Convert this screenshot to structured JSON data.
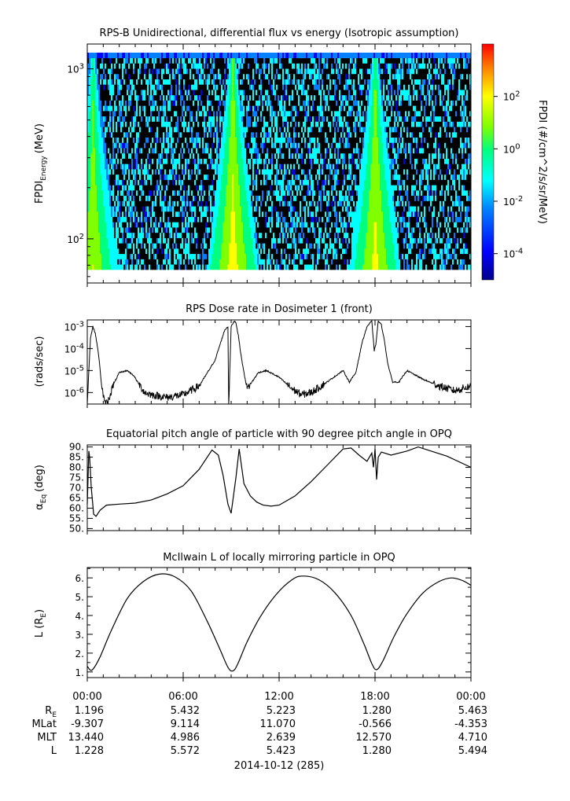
{
  "figure": {
    "date_label": "2014-10-12 (285)"
  },
  "chart_data": [
    {
      "id": "spectrogram",
      "type": "heatmap",
      "title": "RPS-B  Unidirectional, differential flux vs energy (Isotropic assumption)",
      "ylabel": "FPDI",
      "ylabel_sub": "Energy",
      "ylabel_unit": "(MeV)",
      "y_scale": "log",
      "ylim": [
        55,
        1400
      ],
      "y_ticks": [
        {
          "value": 100,
          "label": "10",
          "exp": "2"
        },
        {
          "value": 1000,
          "label": "10",
          "exp": "3"
        }
      ],
      "x_hours": [
        0,
        24
      ],
      "energy_channels_mev": [
        58,
        62,
        66,
        71,
        76,
        82,
        88,
        95,
        102,
        110,
        118,
        127,
        137,
        148,
        160,
        173,
        187,
        202,
        219,
        237,
        257,
        279,
        303,
        329,
        357,
        388,
        421,
        457,
        496,
        538,
        584,
        634,
        688,
        747,
        811,
        880,
        955,
        1037,
        1125,
        1222,
        1326
      ],
      "flux_peaks": [
        {
          "center_hour": 0.35,
          "peak_log_flux": 1.2,
          "lowest_energy_mev": 58
        },
        {
          "center_hour": 9.1,
          "peak_log_flux": 1.8,
          "lowest_energy_mev": 58
        },
        {
          "center_hour": 18.0,
          "peak_log_flux": 1.6,
          "lowest_energy_mev": 58
        }
      ],
      "colorbar": {
        "label": "FPDI (#/cm^2/s/sr/MeV)",
        "log_range": [
          -5,
          4
        ],
        "ticks": [
          {
            "label": "10",
            "exp": "-4",
            "log": -4
          },
          {
            "label": "10",
            "exp": "-2",
            "log": -2
          },
          {
            "label": "10",
            "exp": "0",
            "log": 0
          },
          {
            "label": "10",
            "exp": "2",
            "log": 2
          }
        ],
        "colors": [
          "#00008b",
          "#0000ff",
          "#0080ff",
          "#00ffff",
          "#00ff80",
          "#80ff00",
          "#ffff00",
          "#ff8000",
          "#ff0000"
        ]
      }
    },
    {
      "id": "dose",
      "type": "line",
      "title": "RPS  Dose rate in Dosimeter 1 (front)",
      "ylabel": "(rads/sec)",
      "y_scale": "log",
      "ylim": [
        3e-07,
        0.002
      ],
      "y_ticks": [
        {
          "value": 1e-06,
          "label": "10",
          "exp": "-6"
        },
        {
          "value": 1e-05,
          "label": "10",
          "exp": "-5"
        },
        {
          "value": 0.0001,
          "label": "10",
          "exp": "-4"
        },
        {
          "value": 0.001,
          "label": "10",
          "exp": "-3"
        }
      ],
      "x": [
        0.0,
        0.1,
        0.2,
        0.35,
        0.5,
        0.7,
        0.9,
        1.1,
        1.3,
        1.6,
        2.0,
        2.5,
        2.9,
        3.3,
        3.6,
        4.0,
        5.0,
        6.0,
        7.0,
        7.6,
        8.0,
        8.3,
        8.6,
        8.8,
        8.85,
        9.0,
        9.2,
        9.3,
        9.45,
        9.6,
        9.8,
        10.0,
        10.3,
        10.7,
        11.2,
        12.0,
        12.8,
        13.4,
        14.0,
        15.0,
        16.0,
        16.4,
        16.8,
        17.2,
        17.5,
        17.8,
        17.95,
        18.05,
        18.2,
        18.4,
        18.6,
        18.8,
        19.1,
        19.5,
        20.0,
        21.0,
        22.0,
        23.0,
        24.0
      ],
      "y": [
        4e-07,
        1e-05,
        0.0003,
        0.001,
        0.0005,
        6e-05,
        2e-06,
        3e-07,
        4e-07,
        2e-06,
        8e-06,
        1e-05,
        6e-06,
        2e-06,
        1e-06,
        8e-07,
        6e-07,
        8e-07,
        2e-06,
        1e-05,
        3e-05,
        0.00015,
        0.0007,
        0.001,
        3e-07,
        0.001,
        0.0018,
        0.0015,
        0.0004,
        6e-05,
        8e-06,
        1.5e-06,
        3e-06,
        8e-06,
        1e-05,
        5e-06,
        1.5e-06,
        8e-07,
        1e-06,
        3e-06,
        1e-05,
        3e-06,
        8e-06,
        0.0002,
        0.001,
        0.0018,
        8e-05,
        0.00015,
        0.0018,
        0.0012,
        0.0002,
        2e-05,
        3e-06,
        3e-06,
        1e-05,
        4e-06,
        2e-06,
        1.2e-06,
        2e-06
      ]
    },
    {
      "id": "pitch",
      "type": "line",
      "title": "Equatorial pitch angle of particle with 90 degree pitch angle in OPQ",
      "ylabel": "α",
      "ylabel_sub": "Eq",
      "ylabel_unit": "(deg)",
      "ylim": [
        49,
        91
      ],
      "y_ticks": [
        50,
        55,
        60,
        65,
        70,
        75,
        80,
        85,
        90
      ],
      "x": [
        0.0,
        0.1,
        0.15,
        0.25,
        0.4,
        0.55,
        0.8,
        1.2,
        2.0,
        3.0,
        4.0,
        5.0,
        6.0,
        7.0,
        7.8,
        8.2,
        8.5,
        8.8,
        9.0,
        9.3,
        9.5,
        9.8,
        10.2,
        10.6,
        11.0,
        11.5,
        12.0,
        13.0,
        14.0,
        15.0,
        16.0,
        16.5,
        17.0,
        17.5,
        17.8,
        17.9,
        18.0,
        18.1,
        18.2,
        18.4,
        19.0,
        20.0,
        20.7,
        21.5,
        22.5,
        24.0
      ],
      "y": [
        62,
        88,
        85,
        70,
        57,
        56,
        59,
        61.5,
        62,
        62.5,
        64,
        67,
        71,
        79,
        88.5,
        86,
        76,
        62,
        57.5,
        75,
        89,
        72,
        66,
        63,
        61.5,
        61,
        61.5,
        66,
        73,
        81,
        89,
        89.5,
        86,
        83,
        87,
        80,
        89,
        74,
        85,
        87.5,
        86,
        88,
        90,
        88,
        85.5,
        80
      ]
    },
    {
      "id": "lshell",
      "type": "line",
      "title": "McIlwain L of locally mirroring particle in OPQ",
      "ylabel": "L (R",
      "ylabel_sub": "E",
      "ylabel_unit": ")",
      "ylim": [
        0.7,
        6.55
      ],
      "y_ticks": [
        1,
        2,
        3,
        4,
        5,
        6
      ],
      "x": [
        0.0,
        0.3,
        0.8,
        1.5,
        2.5,
        3.5,
        4.5,
        5.5,
        6.5,
        7.5,
        8.3,
        8.8,
        9.1,
        9.4,
        10.0,
        10.8,
        11.8,
        12.8,
        13.5,
        14.5,
        15.5,
        16.5,
        17.3,
        17.8,
        18.1,
        18.5,
        19.2,
        20.0,
        21.0,
        22.0,
        22.8,
        23.5,
        24.0
      ],
      "y": [
        1.3,
        1.1,
        1.8,
        3.2,
        4.9,
        5.8,
        6.2,
        6.05,
        5.3,
        3.7,
        2.2,
        1.25,
        1.05,
        1.4,
        2.6,
        3.9,
        5.1,
        5.9,
        6.1,
        5.9,
        5.2,
        4.0,
        2.5,
        1.45,
        1.12,
        1.6,
        2.9,
        4.1,
        5.2,
        5.8,
        6.0,
        5.85,
        5.6
      ]
    }
  ],
  "x_axis": {
    "tick_labels": [
      "00:00",
      "06:00",
      "12:00",
      "18:00",
      "00:00"
    ],
    "tick_hours": [
      0,
      6,
      12,
      18,
      24
    ]
  },
  "ephemeris": {
    "rows": [
      {
        "label": "R",
        "label_sub": "E",
        "values": [
          "1.196",
          "5.432",
          "5.223",
          "1.280",
          "5.463"
        ]
      },
      {
        "label": "MLat",
        "label_sub": "",
        "values": [
          "-9.307",
          "9.114",
          "11.070",
          "-0.566",
          "-4.353"
        ]
      },
      {
        "label": "MLT",
        "label_sub": "",
        "values": [
          "13.440",
          "4.986",
          "2.639",
          "12.570",
          "4.710"
        ]
      },
      {
        "label": "L",
        "label_sub": "",
        "values": [
          "1.228",
          "5.572",
          "5.423",
          "1.280",
          "5.494"
        ]
      }
    ]
  }
}
